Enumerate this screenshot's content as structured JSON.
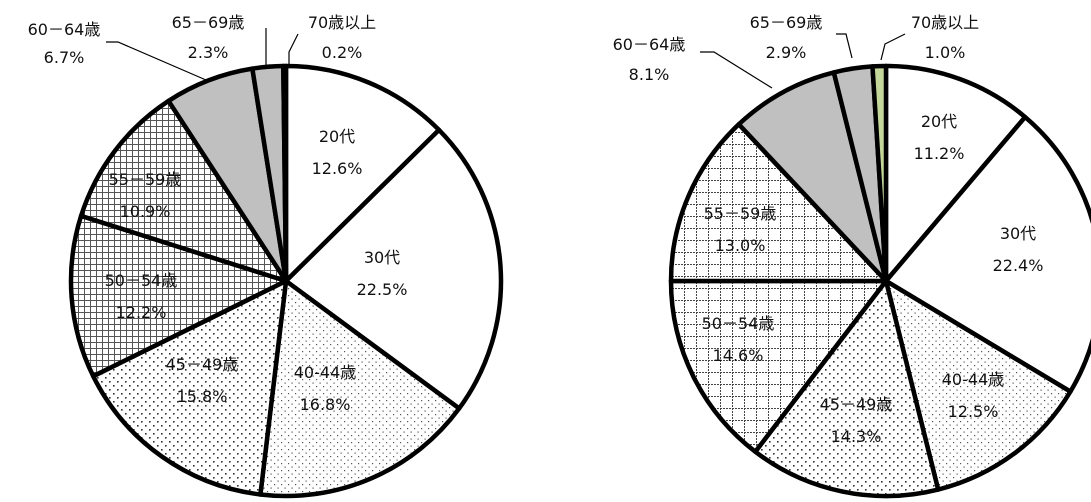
{
  "chart_data": [
    {
      "type": "pie",
      "start_angle_deg": 0,
      "direction": "clockwise",
      "categories": [
        "20代",
        "30代",
        "40-44歳",
        "45－49歳",
        "50－54歳",
        "55－59歳",
        "60－64歳",
        "65－69歳",
        "70歳以上"
      ],
      "category_labels": [
        "20代",
        "30代",
        "40-44歳",
        "45－49歳",
        "50－54歳",
        "55－59歳",
        "60－64歳",
        "65－69歳",
        "70歳以上"
      ],
      "values": [
        12.6,
        22.5,
        16.8,
        15.8,
        12.2,
        10.9,
        6.7,
        2.3,
        0.2
      ],
      "value_labels": [
        "12.6%",
        "22.5%",
        "16.8%",
        "15.8%",
        "12.2%",
        "10.9%",
        "6.7%",
        "2.3%",
        "0.2%"
      ],
      "fills": [
        "white",
        "white",
        "dots-fine",
        "dots",
        "grid-fine",
        "grid-fine",
        "gray",
        "gray",
        "green"
      ],
      "colors": {
        "gray": "#c0c0c0",
        "green": "#c4d79b",
        "outline": "#000000"
      }
    },
    {
      "type": "pie",
      "start_angle_deg": 0,
      "direction": "clockwise",
      "categories": [
        "20代",
        "30代",
        "40-44歳",
        "45－49歳",
        "50－54歳",
        "55－59歳",
        "60－64歳",
        "65－69歳",
        "70歳以上"
      ],
      "category_labels": [
        "20代",
        "30代",
        "40-44歳",
        "45－49歳",
        "50－54歳",
        "55－59歳",
        "60－64歳",
        "65－69歳",
        "70歳以上"
      ],
      "values": [
        11.2,
        22.4,
        12.5,
        14.3,
        14.6,
        13.0,
        8.1,
        2.9,
        1.0
      ],
      "value_labels": [
        "11.2%",
        "22.4%",
        "12.5%",
        "14.3%",
        "14.6%",
        "13.0%",
        "8.1%",
        "2.9%",
        "1.0%"
      ],
      "fills": [
        "white",
        "white",
        "dots-fine",
        "dots",
        "grid-large",
        "grid-large",
        "gray",
        "gray",
        "green"
      ],
      "colors": {
        "gray": "#c0c0c0",
        "green": "#c4d79b",
        "outline": "#000000"
      }
    }
  ]
}
